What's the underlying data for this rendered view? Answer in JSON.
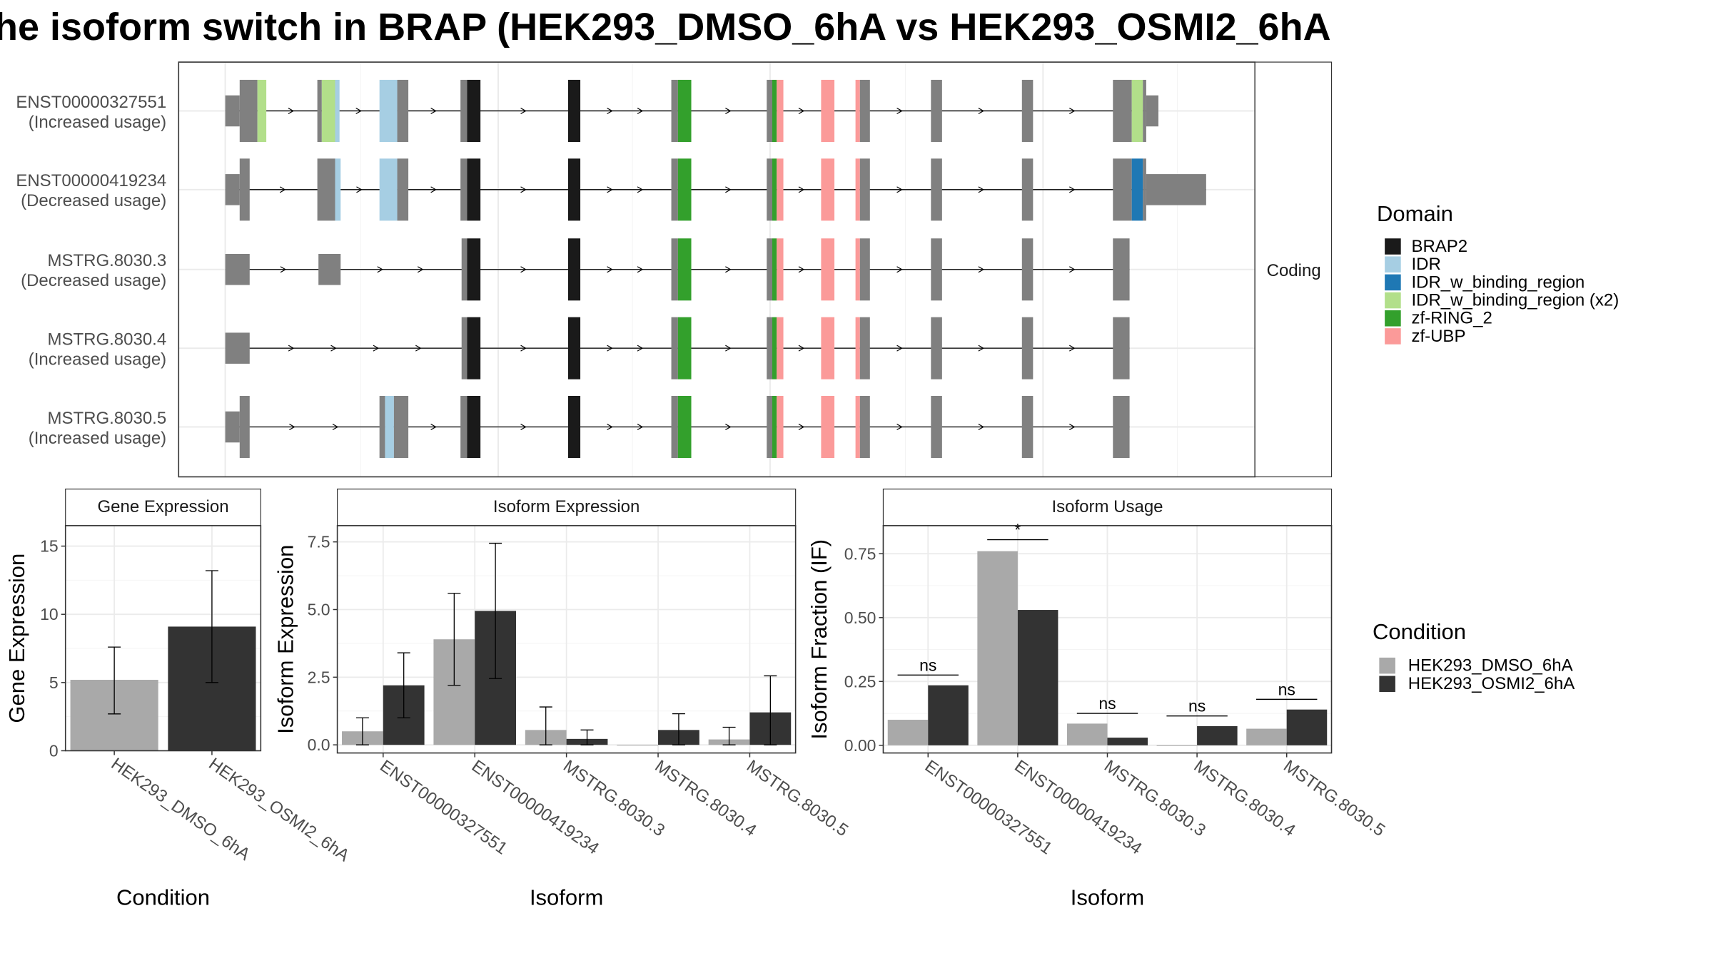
{
  "title": "he isoform switch in BRAP (HEK293_DMSO_6hA vs HEK293_OSMI2_6hA",
  "structure": {
    "strip_label": "Coding",
    "legend_title": "Domain",
    "domains": [
      {
        "name": "BRAP2",
        "color": "#1a1a1a"
      },
      {
        "name": "IDR",
        "color": "#a6cee3"
      },
      {
        "name": "IDR_w_binding_region",
        "color": "#1f78b4"
      },
      {
        "name": "IDR_w_binding_region (x2)",
        "color": "#b2df8a"
      },
      {
        "name": "zf-RING_2",
        "color": "#33a02c"
      },
      {
        "name": "zf-UBP",
        "color": "#fb9a99"
      }
    ],
    "isoforms": [
      {
        "name": "ENST00000327551",
        "usage": "(Increased usage)",
        "features": [
          [
            203,
            216,
            "u"
          ],
          [
            216,
            232,
            "c"
          ],
          [
            232,
            240,
            "IDRx2"
          ],
          [
            286,
            290,
            "c"
          ],
          [
            290,
            302,
            "IDRx2"
          ],
          [
            302,
            306,
            "IDR"
          ],
          [
            342,
            358,
            "IDR"
          ],
          [
            358,
            368,
            "c"
          ],
          [
            415,
            421,
            "c"
          ],
          [
            421,
            433,
            "BRAP2"
          ],
          [
            512,
            523,
            "BRAP2"
          ],
          [
            605,
            611,
            "c"
          ],
          [
            611,
            623,
            "zf-RING_2"
          ],
          [
            691,
            696,
            "c"
          ],
          [
            696,
            700,
            "zf-RING_2"
          ],
          [
            700,
            706,
            "zf-UBP"
          ],
          [
            740,
            752,
            "zf-UBP"
          ],
          [
            771,
            775,
            "zf-UBP"
          ],
          [
            775,
            784,
            "c"
          ],
          [
            839,
            849,
            "c"
          ],
          [
            921,
            931,
            "c"
          ],
          [
            1003,
            1020,
            "c"
          ],
          [
            1020,
            1030,
            "IDRx2"
          ],
          [
            1030,
            1033,
            "c"
          ],
          [
            1033,
            1044,
            "u"
          ]
        ]
      },
      {
        "name": "ENST00000419234",
        "usage": "(Decreased usage)",
        "features": [
          [
            203,
            216,
            "u"
          ],
          [
            216,
            225,
            "c"
          ],
          [
            286,
            302,
            "c"
          ],
          [
            302,
            307,
            "IDR"
          ],
          [
            342,
            358,
            "IDR"
          ],
          [
            358,
            368,
            "c"
          ],
          [
            415,
            421,
            "c"
          ],
          [
            421,
            433,
            "BRAP2"
          ],
          [
            512,
            523,
            "BRAP2"
          ],
          [
            605,
            611,
            "c"
          ],
          [
            611,
            623,
            "zf-RING_2"
          ],
          [
            691,
            696,
            "c"
          ],
          [
            696,
            700,
            "zf-RING_2"
          ],
          [
            700,
            706,
            "zf-UBP"
          ],
          [
            740,
            752,
            "zf-UBP"
          ],
          [
            771,
            775,
            "zf-UBP"
          ],
          [
            775,
            784,
            "c"
          ],
          [
            839,
            849,
            "c"
          ],
          [
            921,
            931,
            "c"
          ],
          [
            1003,
            1020,
            "c"
          ],
          [
            1020,
            1030,
            "IDR_w_binding_region"
          ],
          [
            1030,
            1033,
            "c"
          ],
          [
            1033,
            1087,
            "u"
          ]
        ]
      },
      {
        "name": "MSTRG.8030.3",
        "usage": "(Decreased usage)",
        "features": [
          [
            203,
            225,
            "u"
          ],
          [
            287,
            307,
            "u"
          ],
          [
            416,
            421,
            "c"
          ],
          [
            421,
            433,
            "BRAP2"
          ],
          [
            512,
            523,
            "BRAP2"
          ],
          [
            605,
            611,
            "c"
          ],
          [
            611,
            623,
            "zf-RING_2"
          ],
          [
            691,
            696,
            "c"
          ],
          [
            696,
            700,
            "zf-RING_2"
          ],
          [
            700,
            706,
            "zf-UBP"
          ],
          [
            740,
            752,
            "zf-UBP"
          ],
          [
            771,
            775,
            "zf-UBP"
          ],
          [
            775,
            784,
            "c"
          ],
          [
            839,
            849,
            "c"
          ],
          [
            921,
            931,
            "c"
          ],
          [
            1003,
            1018,
            "c"
          ]
        ]
      },
      {
        "name": "MSTRG.8030.4",
        "usage": "(Increased usage)",
        "features": [
          [
            203,
            225,
            "u"
          ],
          [
            416,
            421,
            "c"
          ],
          [
            421,
            433,
            "BRAP2"
          ],
          [
            512,
            523,
            "BRAP2"
          ],
          [
            605,
            611,
            "c"
          ],
          [
            611,
            623,
            "zf-RING_2"
          ],
          [
            691,
            696,
            "c"
          ],
          [
            696,
            700,
            "zf-RING_2"
          ],
          [
            700,
            706,
            "zf-UBP"
          ],
          [
            740,
            752,
            "zf-UBP"
          ],
          [
            771,
            775,
            "zf-UBP"
          ],
          [
            775,
            784,
            "c"
          ],
          [
            839,
            849,
            "c"
          ],
          [
            921,
            931,
            "c"
          ],
          [
            1003,
            1018,
            "c"
          ]
        ]
      },
      {
        "name": "MSTRG.8030.5",
        "usage": "(Increased usage)",
        "features": [
          [
            203,
            216,
            "u"
          ],
          [
            216,
            225,
            "c"
          ],
          [
            342,
            347,
            "c"
          ],
          [
            347,
            355,
            "IDR"
          ],
          [
            355,
            368,
            "c"
          ],
          [
            415,
            421,
            "c"
          ],
          [
            421,
            433,
            "BRAP2"
          ],
          [
            512,
            523,
            "BRAP2"
          ],
          [
            605,
            611,
            "c"
          ],
          [
            611,
            623,
            "zf-RING_2"
          ],
          [
            691,
            696,
            "c"
          ],
          [
            696,
            700,
            "zf-RING_2"
          ],
          [
            700,
            706,
            "zf-UBP"
          ],
          [
            740,
            752,
            "zf-UBP"
          ],
          [
            771,
            775,
            "zf-UBP"
          ],
          [
            775,
            784,
            "c"
          ],
          [
            839,
            849,
            "c"
          ],
          [
            921,
            931,
            "c"
          ],
          [
            1003,
            1018,
            "c"
          ]
        ]
      }
    ]
  },
  "chart_data": [
    {
      "type": "bar",
      "panel_title": "Gene Expression",
      "xlabel": "Condition",
      "ylabel": "Gene Expression",
      "ylim": [
        0,
        16.5
      ],
      "yticks": [
        0,
        5,
        10,
        15
      ],
      "ytick_labels": [
        "0",
        "5",
        "10",
        "15"
      ],
      "categories": [
        "HEK293_DMSO_6hA",
        "HEK293_OSMI2_6hA"
      ],
      "series": [
        {
          "values": [
            5.2,
            9.1
          ],
          "err_low": [
            2.7,
            5.0
          ],
          "err_high": [
            7.6,
            13.2
          ],
          "color": "#a9a9a9"
        }
      ],
      "series_colors": [
        "#a9a9a9",
        "#333333"
      ]
    },
    {
      "type": "bar",
      "panel_title": "Isoform Expression",
      "xlabel": "Isoform",
      "ylabel": "Isoform Expression",
      "ylim": [
        -0.3,
        8.1
      ],
      "yticks": [
        0,
        2.5,
        5,
        7.5
      ],
      "ytick_labels": [
        "0.0",
        "2.5",
        "5.0",
        "7.5"
      ],
      "categories": [
        "ENST00000327551",
        "ENST00000419234",
        "MSTRG.8030.3",
        "MSTRG.8030.4",
        "MSTRG.8030.5"
      ],
      "series": [
        {
          "name": "HEK293_DMSO_6hA",
          "values": [
            0.5,
            3.9,
            0.55,
            0.0,
            0.2
          ],
          "err_low": [
            0.0,
            2.2,
            0.0,
            0.0,
            0.0
          ],
          "err_high": [
            1.0,
            5.6,
            1.4,
            0.0,
            0.65
          ],
          "color": "#a9a9a9"
        },
        {
          "name": "HEK293_OSMI2_6hA",
          "values": [
            2.2,
            4.95,
            0.22,
            0.55,
            1.2
          ],
          "err_low": [
            1.0,
            2.45,
            0.0,
            0.0,
            0.0
          ],
          "err_high": [
            3.4,
            7.45,
            0.55,
            1.15,
            2.55
          ],
          "color": "#333333"
        }
      ]
    },
    {
      "type": "bar",
      "panel_title": "Isoform Usage",
      "xlabel": "Isoform",
      "ylabel": "Isoform Fraction (IF)",
      "ylim": [
        -0.03,
        0.86
      ],
      "yticks": [
        0,
        0.25,
        0.5,
        0.75
      ],
      "ytick_labels": [
        "0.00",
        "0.25",
        "0.50",
        "0.75"
      ],
      "categories": [
        "ENST00000327551",
        "ENST00000419234",
        "MSTRG.8030.3",
        "MSTRG.8030.4",
        "MSTRG.8030.5"
      ],
      "series": [
        {
          "name": "HEK293_DMSO_6hA",
          "values": [
            0.1,
            0.76,
            0.085,
            0.0,
            0.065
          ],
          "color": "#a9a9a9"
        },
        {
          "name": "HEK293_OSMI2_6hA",
          "values": [
            0.235,
            0.53,
            0.03,
            0.075,
            0.14
          ],
          "color": "#333333"
        }
      ],
      "significance": [
        {
          "label": "ns",
          "y": 0.275
        },
        {
          "label": "*",
          "y": 0.805
        },
        {
          "label": "ns",
          "y": 0.125
        },
        {
          "label": "ns",
          "y": 0.115
        },
        {
          "label": "ns",
          "y": 0.18
        }
      ]
    }
  ],
  "condition_legend": {
    "title": "Condition",
    "items": [
      {
        "name": "HEK293_DMSO_6hA",
        "color": "#a9a9a9"
      },
      {
        "name": "HEK293_OSMI2_6hA",
        "color": "#333333"
      }
    ]
  }
}
